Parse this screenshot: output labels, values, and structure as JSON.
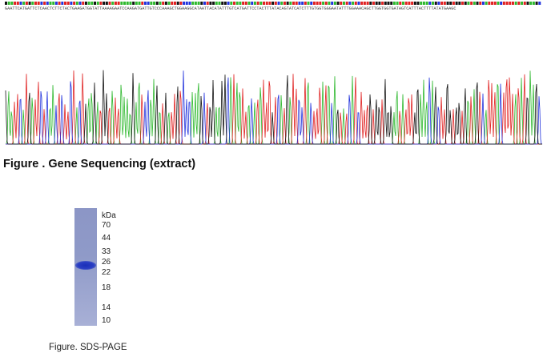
{
  "sequencing": {
    "bases": "GAATTCATGATTCTCAACTCTTCTACTGAAGATGGTATTAAAAGAATCCAAGATGATTGTCCCAAAGCTGGAAGGCATAATTACATATTTGTCATGATTCCTACTTTATACAGTATCATCTTTGTGGTGGGAATATTTGGAAACAGCTTGGTGGTGATAGTCATTTACTTTTATATGAAGC",
    "caption": "Figure . Gene Sequencing (extract)",
    "base_colors": {
      "A": "#2db82d",
      "C": "#2233dd",
      "G": "#111111",
      "T": "#e02020"
    }
  },
  "sds_page": {
    "unit_label": "kDa",
    "markers": [
      "70",
      "44",
      "33",
      "26",
      "22",
      "18",
      "14",
      "10"
    ],
    "caption": "Figure. SDS-PAGE",
    "lane_color": "#8f9ac8",
    "band_color": "#1b2fb8"
  }
}
